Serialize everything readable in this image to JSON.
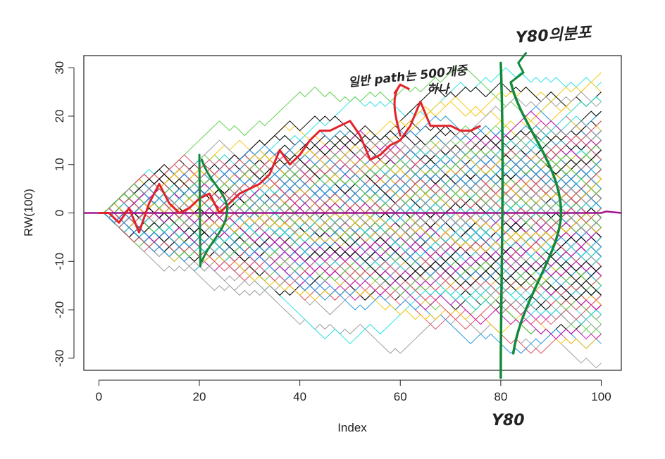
{
  "chart_data": {
    "type": "line",
    "title": "",
    "xlabel": "Index",
    "ylabel": "RW(100)",
    "xlim": [
      -3,
      104
    ],
    "ylim": [
      -32.5,
      32.5
    ],
    "x_ticks": [
      0,
      20,
      40,
      60,
      80,
      100
    ],
    "y_ticks": [
      -30,
      -20,
      -10,
      0,
      10,
      20,
      30
    ],
    "x_tick_labels": [
      "0",
      "20",
      "40",
      "60",
      "80",
      "100"
    ],
    "y_tick_labels": [
      "-30",
      "-20",
      "-10",
      "0",
      "10",
      "20",
      "30"
    ],
    "grid": false,
    "legend": "none",
    "series_description": {
      "count": 500,
      "n_steps": 100,
      "step_size": 1,
      "start_value": 0
    },
    "palette": [
      "#000000",
      "#df536b",
      "#61d04f",
      "#2297e6",
      "#28e2e5",
      "#cd0bbc",
      "#f5c710",
      "#9e9e9e"
    ],
    "highlighted_path": {
      "color": "#e3222b",
      "x": [
        0,
        2,
        4,
        6,
        8,
        10,
        12,
        14,
        16,
        18,
        20,
        22,
        24,
        26,
        28,
        30,
        32,
        34,
        36,
        38,
        40,
        42,
        44,
        46,
        48,
        50,
        52,
        54,
        56,
        58,
        60,
        62,
        64,
        66,
        68,
        70,
        72,
        74,
        76
      ],
      "values": [
        0,
        0,
        -2,
        1,
        -4,
        2,
        6,
        2,
        0,
        1,
        3,
        4,
        0,
        2,
        4,
        5,
        6,
        8,
        13,
        10,
        12,
        15,
        17,
        17,
        18,
        19,
        16,
        11,
        12,
        14,
        15,
        18,
        23,
        18,
        18,
        18,
        17,
        17,
        18
      ]
    },
    "mean_line": {
      "color": "#a0158f",
      "x": [
        -3,
        0,
        20,
        40,
        60,
        80,
        100,
        101,
        104
      ],
      "values": [
        0,
        0,
        0,
        0,
        0,
        0,
        0,
        0.3,
        0
      ]
    },
    "annotations": {
      "color_green": "#138a3a",
      "color_red": "#e3222b",
      "red_note_line1": "일반 path는 500개중",
      "red_note_line2": "하나",
      "green_top_label": "Y80의분포",
      "green_bottom_label": "Y80"
    }
  }
}
